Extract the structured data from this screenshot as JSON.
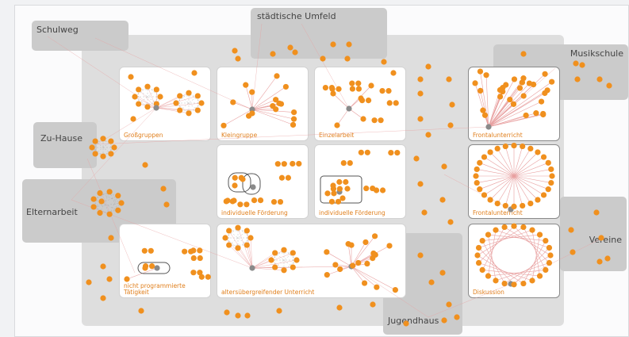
{
  "outside_contexts": {
    "schulweg": "Schulweg",
    "staedtisches_umfeld": "städtische Umfeld",
    "musikschule": "Musikschule",
    "zu_hause": "Zu-Hause",
    "elternarbeit": "Elternarbeit",
    "vereine": "Vereine",
    "jugendhaus": "Jugendhaus"
  },
  "learning_settings": {
    "grossgruppen": "Großgruppen",
    "kleingruppe": "Kleingruppe",
    "einzelarbeit": "Einzelarbeit",
    "frontalunterricht_1": "Frontalunterricht",
    "individuelle_foerderung_1": "individuelle Förderung",
    "individuelle_foerderung_2": "individuelle Förderung",
    "frontalunterricht_2": "Frontalunterricht",
    "nicht_programmierte": "nicht programmierte Tätigkeit",
    "altersuebergreifender": "altersübergreifender Unterricht",
    "diskussion": "Diskussion"
  },
  "colors": {
    "node": "#f0901e",
    "hub": "#8a8a8a",
    "link": "#e8a0a0",
    "gray_link": "#a8a8a8",
    "panel_label": "#e07f1c"
  }
}
